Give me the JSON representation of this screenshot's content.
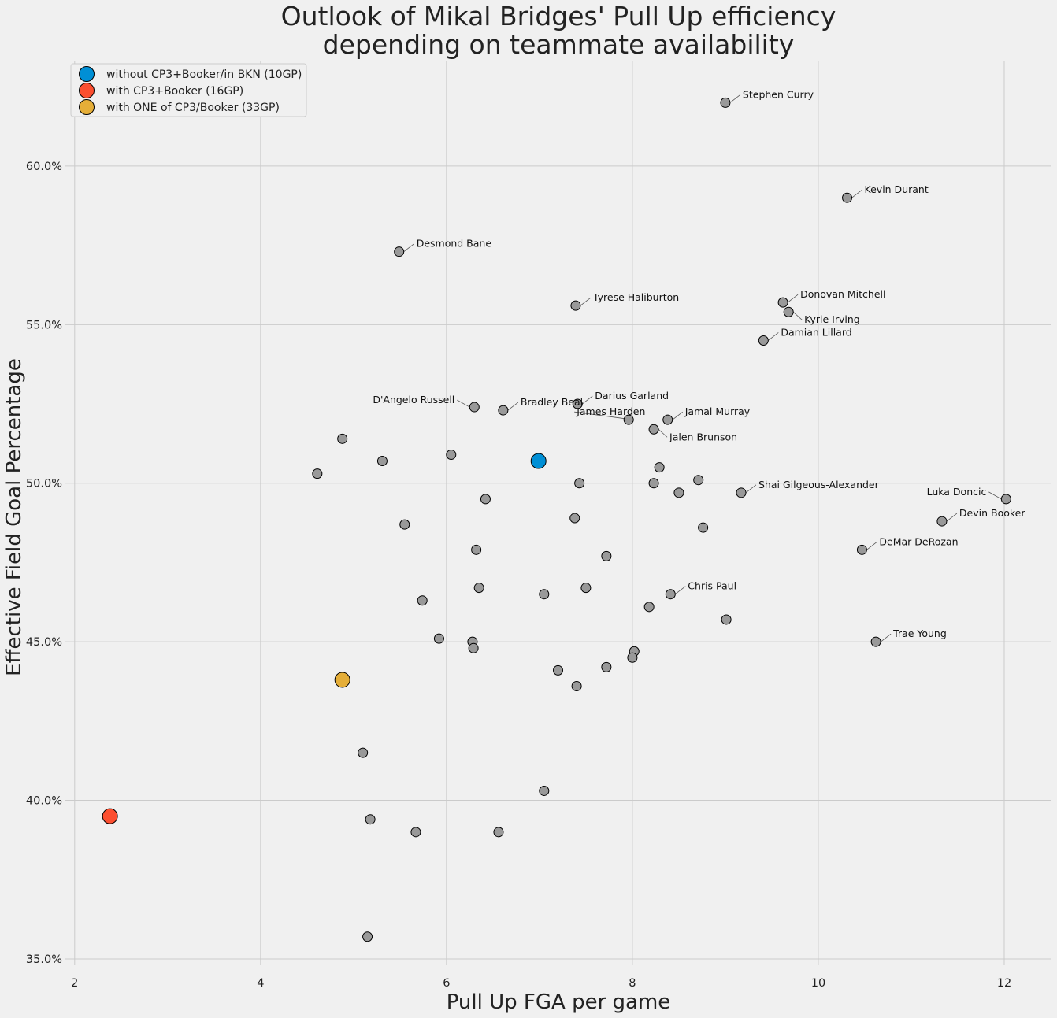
{
  "chart_data": {
    "type": "scatter",
    "title": [
      "Outlook of Mikal Bridges' Pull Up efficiency",
      "depending on teammate availability"
    ],
    "xlabel": "Pull Up FGA per game",
    "ylabel": "Effective Field Goal Percentage",
    "xlim": [
      1.9,
      12.5
    ],
    "ylim": [
      0.348,
      0.633
    ],
    "x_ticks": [
      2,
      4,
      6,
      8,
      10,
      12
    ],
    "x_tick_labels": [
      "2",
      "4",
      "6",
      "8",
      "10",
      "12"
    ],
    "y_ticks": [
      0.35,
      0.4,
      0.45,
      0.5,
      0.55,
      0.6
    ],
    "y_tick_labels": [
      "35.0%",
      "40.0%",
      "45.0%",
      "50.0%",
      "55.0%",
      "60.0%"
    ],
    "grid": true,
    "legend_position": "top-left",
    "league_color": "#999999",
    "series": [
      {
        "name": "without CP3+Booker/in BKN (10GP)",
        "color": "#008fd5",
        "points": [
          {
            "x": 6.99,
            "y": 0.507
          }
        ]
      },
      {
        "name": "with CP3+Booker (16GP)",
        "color": "#fc4f30",
        "points": [
          {
            "x": 2.38,
            "y": 0.395
          }
        ]
      },
      {
        "name": "with ONE of CP3/Booker (33GP)",
        "color": "#e5ae38",
        "points": [
          {
            "x": 4.88,
            "y": 0.438
          }
        ]
      }
    ],
    "league_players": [
      {
        "label": "Stephen Curry",
        "x": 9.0,
        "y": 0.62,
        "side": "right"
      },
      {
        "label": "Kevin Durant",
        "x": 10.31,
        "y": 0.59,
        "side": "right"
      },
      {
        "label": "Desmond Bane",
        "x": 5.49,
        "y": 0.573,
        "side": "right"
      },
      {
        "label": "Tyrese Haliburton",
        "x": 7.39,
        "y": 0.556,
        "side": "right"
      },
      {
        "label": "Donovan Mitchell",
        "x": 9.62,
        "y": 0.557,
        "side": "right"
      },
      {
        "label": "Kyrie Irving",
        "x": 9.68,
        "y": 0.554,
        "side": "right-below"
      },
      {
        "label": "Damian Lillard",
        "x": 9.41,
        "y": 0.545,
        "side": "right"
      },
      {
        "label": "D'Angelo Russell",
        "x": 6.3,
        "y": 0.524,
        "side": "left"
      },
      {
        "label": "Bradley Beal",
        "x": 6.61,
        "y": 0.523,
        "side": "right"
      },
      {
        "label": "Darius Garland",
        "x": 7.41,
        "y": 0.525,
        "side": "right"
      },
      {
        "label": "James Harden",
        "x": 7.96,
        "y": 0.52,
        "side": "left-above"
      },
      {
        "label": "Jamal Murray",
        "x": 8.38,
        "y": 0.52,
        "side": "right"
      },
      {
        "label": "Jalen Brunson",
        "x": 8.23,
        "y": 0.517,
        "side": "right-below"
      },
      {
        "label": "Shai Gilgeous-Alexander",
        "x": 9.17,
        "y": 0.497,
        "side": "right"
      },
      {
        "label": "Luka Doncic",
        "x": 12.02,
        "y": 0.495,
        "side": "left"
      },
      {
        "label": "Devin Booker",
        "x": 11.33,
        "y": 0.488,
        "side": "right"
      },
      {
        "label": "DeMar DeRozan",
        "x": 10.47,
        "y": 0.479,
        "side": "right"
      },
      {
        "label": "Chris Paul",
        "x": 8.41,
        "y": 0.465,
        "side": "right"
      },
      {
        "label": "Trae Young",
        "x": 10.62,
        "y": 0.45,
        "side": "right"
      },
      {
        "label": "",
        "x": 4.88,
        "y": 0.514
      },
      {
        "label": "",
        "x": 4.61,
        "y": 0.503
      },
      {
        "label": "",
        "x": 5.31,
        "y": 0.507
      },
      {
        "label": "",
        "x": 6.05,
        "y": 0.509
      },
      {
        "label": "",
        "x": 5.55,
        "y": 0.487
      },
      {
        "label": "",
        "x": 6.42,
        "y": 0.495
      },
      {
        "label": "",
        "x": 6.32,
        "y": 0.479
      },
      {
        "label": "",
        "x": 7.43,
        "y": 0.5
      },
      {
        "label": "",
        "x": 7.38,
        "y": 0.489
      },
      {
        "label": "",
        "x": 7.72,
        "y": 0.477
      },
      {
        "label": "",
        "x": 8.29,
        "y": 0.505
      },
      {
        "label": "",
        "x": 8.23,
        "y": 0.5
      },
      {
        "label": "",
        "x": 8.5,
        "y": 0.497
      },
      {
        "label": "",
        "x": 8.71,
        "y": 0.501
      },
      {
        "label": "",
        "x": 8.76,
        "y": 0.486
      },
      {
        "label": "",
        "x": 5.74,
        "y": 0.463
      },
      {
        "label": "",
        "x": 6.35,
        "y": 0.467
      },
      {
        "label": "",
        "x": 7.05,
        "y": 0.465
      },
      {
        "label": "",
        "x": 7.5,
        "y": 0.467
      },
      {
        "label": "",
        "x": 8.18,
        "y": 0.461
      },
      {
        "label": "",
        "x": 9.01,
        "y": 0.457
      },
      {
        "label": "",
        "x": 5.92,
        "y": 0.451
      },
      {
        "label": "",
        "x": 6.28,
        "y": 0.45
      },
      {
        "label": "",
        "x": 6.29,
        "y": 0.448
      },
      {
        "label": "",
        "x": 8.02,
        "y": 0.447
      },
      {
        "label": "",
        "x": 8.0,
        "y": 0.445
      },
      {
        "label": "",
        "x": 7.72,
        "y": 0.442
      },
      {
        "label": "",
        "x": 7.2,
        "y": 0.441
      },
      {
        "label": "",
        "x": 7.4,
        "y": 0.436
      },
      {
        "label": "",
        "x": 5.1,
        "y": 0.415
      },
      {
        "label": "",
        "x": 7.05,
        "y": 0.403
      },
      {
        "label": "",
        "x": 5.18,
        "y": 0.394
      },
      {
        "label": "",
        "x": 5.67,
        "y": 0.39
      },
      {
        "label": "",
        "x": 6.56,
        "y": 0.39
      },
      {
        "label": "",
        "x": 5.15,
        "y": 0.357
      }
    ]
  }
}
